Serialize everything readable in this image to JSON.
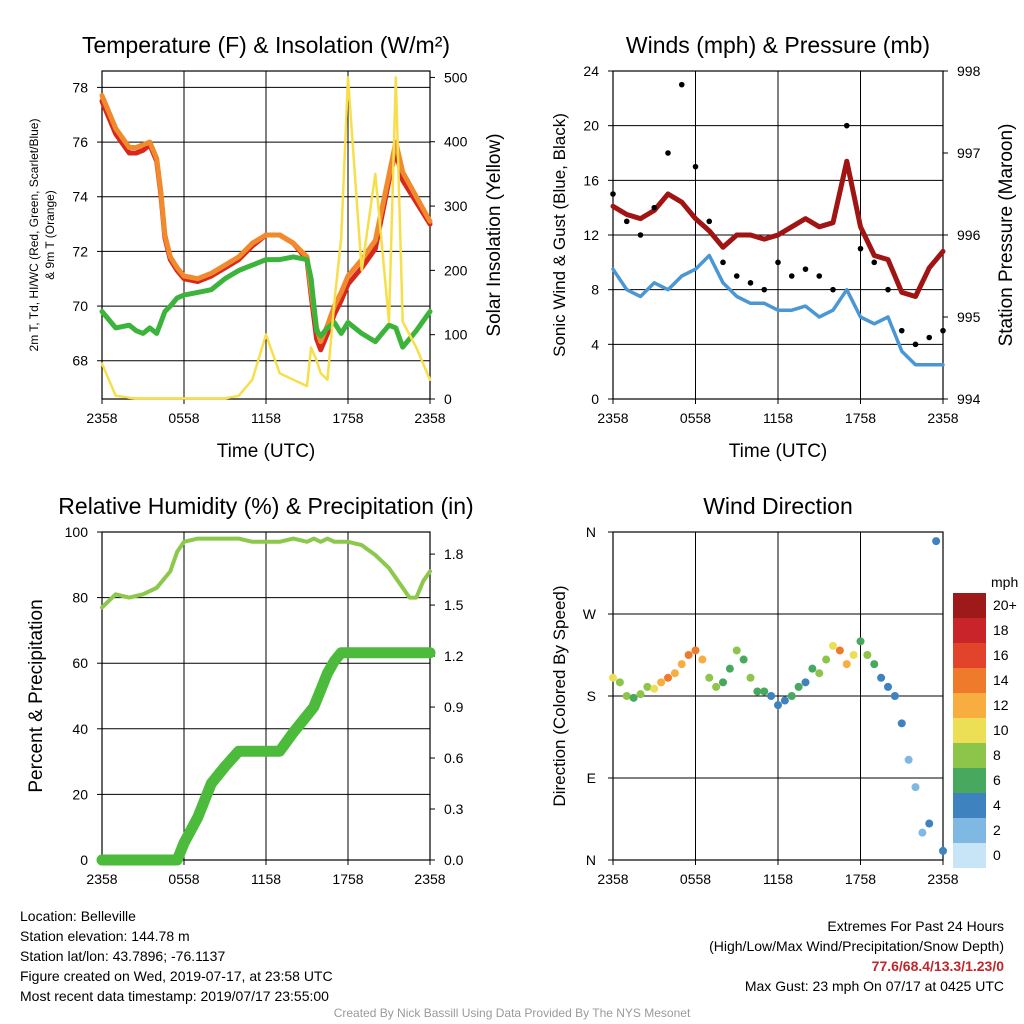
{
  "colors": {
    "red": "#d7281e",
    "orange": "#f08a2c",
    "green": "#3cb43c",
    "yellow": "#f7df4b",
    "blue": "#4a97d4",
    "black": "#000000",
    "maroon": "#a01414",
    "rh": "#8cc84b",
    "precip": "#4cbb3c"
  },
  "chart_data": [
    {
      "type": "line",
      "title": "Temperature (F) & Insolation (W/m²)",
      "xlabel": "Time (UTC)",
      "ylabel": "2m T, Tₓ, HI/WC (Red, Green, Scarlet/Blue) & 9m T (Orange)",
      "ylabel_line1": "2m T, Td, HI/WC (Red, Green, Scarlet/Blue)",
      "ylabel_line2": "& 9m T (Orange)",
      "y2label": "Solar Insolation (Yellow)",
      "x_ticks": [
        "2358",
        "0558",
        "1158",
        "1758",
        "2358"
      ],
      "ylim": [
        66.6,
        78.6
      ],
      "y_ticks": [
        68,
        70,
        72,
        74,
        76,
        78
      ],
      "y2lim": [
        0,
        510
      ],
      "y2_ticks": [
        0,
        100,
        200,
        300,
        400,
        500
      ],
      "x_hours": [
        0,
        1,
        2,
        2.5,
        3,
        3.5,
        4,
        4.3,
        4.6,
        5,
        5.5,
        6,
        7,
        8,
        9,
        10,
        11,
        12,
        13,
        14,
        15,
        15.3,
        15.7,
        16,
        16.5,
        17,
        17.5,
        18,
        19,
        20,
        21,
        21.5,
        22,
        23,
        24
      ],
      "series": [
        {
          "name": "2m T",
          "color": "red",
          "values": [
            77.5,
            76.3,
            75.6,
            75.6,
            75.7,
            75.9,
            75.3,
            74.1,
            72.5,
            71.7,
            71.3,
            71.0,
            70.9,
            71.1,
            71.4,
            71.7,
            72.2,
            72.6,
            72.6,
            72.3,
            71.7,
            70.4,
            68.8,
            68.4,
            69.0,
            69.7,
            70.2,
            70.8,
            71.4,
            72.1,
            74.6,
            75.7,
            74.6,
            73.8,
            73.0
          ]
        },
        {
          "name": "9m T",
          "color": "orange",
          "values": [
            77.7,
            76.5,
            75.8,
            75.8,
            75.9,
            76.0,
            75.4,
            74.2,
            72.6,
            71.8,
            71.4,
            71.1,
            71.0,
            71.2,
            71.5,
            71.8,
            72.3,
            72.6,
            72.6,
            72.3,
            71.8,
            70.6,
            69.2,
            68.7,
            69.3,
            70.0,
            70.5,
            71.1,
            71.7,
            72.4,
            74.8,
            76.0,
            74.9,
            74.0,
            73.1
          ]
        },
        {
          "name": "Dew point",
          "color": "green",
          "values": [
            69.8,
            69.2,
            69.3,
            69.1,
            69.0,
            69.2,
            69.0,
            69.4,
            69.8,
            70.0,
            70.3,
            70.4,
            70.5,
            70.6,
            71.0,
            71.3,
            71.5,
            71.7,
            71.7,
            71.8,
            71.7,
            71.0,
            69.1,
            68.9,
            69.2,
            69.4,
            69.0,
            69.4,
            69.0,
            68.7,
            69.3,
            69.2,
            68.5,
            69.1,
            69.8
          ]
        },
        {
          "name": "Solar Insolation",
          "color": "yellow",
          "axis": "right",
          "values": [
            55,
            5,
            2,
            1,
            1,
            1,
            1,
            1,
            1,
            1,
            1,
            1,
            1,
            1,
            1,
            5,
            30,
            100,
            40,
            30,
            20,
            80,
            60,
            40,
            30,
            150,
            250,
            500,
            200,
            350,
            120,
            500,
            120,
            80,
            30
          ]
        }
      ]
    },
    {
      "type": "line",
      "title": "Winds (mph) & Pressure (mb)",
      "xlabel": "Time (UTC)",
      "ylabel": "Sonic Wind & Gust (Blue, Black)",
      "y2label": "Station Pressure (Maroon)",
      "x_ticks": [
        "2358",
        "0558",
        "1158",
        "1758",
        "2358"
      ],
      "ylim": [
        0,
        24
      ],
      "y_ticks": [
        0,
        4,
        8,
        12,
        16,
        20,
        24
      ],
      "y2lim": [
        994,
        998
      ],
      "y2_ticks": [
        994,
        995,
        996,
        997,
        998
      ],
      "x_hours": [
        0,
        1,
        2,
        3,
        4,
        5,
        6,
        7,
        8,
        9,
        10,
        11,
        12,
        13,
        14,
        15,
        16,
        17,
        18,
        19,
        20,
        21,
        22,
        23,
        24
      ],
      "series": [
        {
          "name": "Sonic Wind",
          "color": "blue",
          "values": [
            9.5,
            8.0,
            7.5,
            8.5,
            8.0,
            9.0,
            9.5,
            10.5,
            8.5,
            7.5,
            7.0,
            7.0,
            6.5,
            6.5,
            6.8,
            6.0,
            6.5,
            8.0,
            6.0,
            5.5,
            6.0,
            3.5,
            2.5,
            2.5,
            2.5
          ]
        },
        {
          "name": "Pressure",
          "color": "maroon",
          "axis": "right",
          "values": [
            996.35,
            996.25,
            996.2,
            996.3,
            996.5,
            996.4,
            996.2,
            996.05,
            995.85,
            996.0,
            996.0,
            995.95,
            996.0,
            996.1,
            996.2,
            996.1,
            996.15,
            996.9,
            996.1,
            995.75,
            995.7,
            995.3,
            995.25,
            995.6,
            995.8
          ]
        },
        {
          "name": "Gust",
          "color": "black",
          "style": "points",
          "values": [
            15,
            13,
            12,
            14,
            18,
            23,
            17,
            13,
            10,
            9,
            8.5,
            8,
            10,
            9,
            9.5,
            9,
            8,
            20,
            11,
            10,
            8,
            5,
            4,
            4.5,
            5
          ]
        }
      ]
    },
    {
      "type": "line",
      "title": "Relative Humidity (%) & Precipitation (in)",
      "ylabel": "Percent & Precipitation",
      "x_ticks": [
        "2358",
        "0558",
        "1158",
        "1758",
        "2358"
      ],
      "ylim": [
        0,
        100
      ],
      "y_ticks": [
        0,
        20,
        40,
        60,
        80,
        100
      ],
      "y2lim": [
        0,
        1.93
      ],
      "y2_ticks": [
        "0.0",
        "0.3",
        "0.6",
        "0.9",
        "1.2",
        "1.5",
        "1.8"
      ],
      "x_hours": [
        0,
        0.5,
        1,
        2,
        3,
        4,
        5,
        5.5,
        6,
        7,
        8,
        9,
        10,
        11,
        12,
        13,
        14,
        15,
        15.5,
        16,
        16.5,
        17,
        17.5,
        18,
        19,
        20,
        21,
        22,
        22.5,
        23,
        23.5,
        24
      ],
      "series": [
        {
          "name": "Relative Humidity",
          "color": "rh",
          "values": [
            77,
            79,
            81,
            80,
            81,
            83,
            88,
            94,
            97,
            98,
            98,
            98,
            98,
            97,
            97,
            97,
            98,
            97,
            98,
            97,
            98,
            97,
            97,
            97,
            96,
            93,
            89,
            83,
            80,
            80,
            85,
            88
          ]
        },
        {
          "name": "Precipitation",
          "color": "precip",
          "axis": "right",
          "values": [
            0,
            0,
            0,
            0,
            0,
            0,
            0,
            0,
            0.1,
            0.25,
            0.45,
            0.55,
            0.64,
            0.64,
            0.64,
            0.64,
            0.75,
            0.85,
            0.9,
            1.0,
            1.1,
            1.17,
            1.22,
            1.22,
            1.22,
            1.22,
            1.22,
            1.22,
            1.22,
            1.22,
            1.22,
            1.22
          ]
        }
      ]
    },
    {
      "type": "scatter",
      "title": "Wind Direction",
      "ylabel": "Direction (Colored By Speed)",
      "x_ticks": [
        "2358",
        "0558",
        "1158",
        "1758",
        "2358"
      ],
      "y_ticks": [
        "N",
        "E",
        "S",
        "W",
        "N"
      ],
      "ylim": [
        0,
        360
      ],
      "colorbar_title": "mph",
      "colorbar_labels": [
        "20+",
        "18",
        "16",
        "14",
        "12",
        "10",
        "8",
        "6",
        "4",
        "2",
        "0"
      ],
      "colorbar_colors": [
        "#9e1a1a",
        "#c9242a",
        "#e2432b",
        "#f07a2b",
        "#f7ad3f",
        "#ecde55",
        "#8dc54a",
        "#48a85e",
        "#3f82c0",
        "#7fb9e3",
        "#c7e5f6"
      ],
      "x_hours": [
        0,
        0.5,
        1,
        1.5,
        2,
        2.5,
        3,
        3.5,
        4,
        4.5,
        5,
        5.5,
        6,
        6.5,
        7,
        7.5,
        8,
        8.5,
        9,
        9.5,
        10,
        10.5,
        11,
        11.5,
        12,
        12.5,
        13,
        13.5,
        14,
        14.5,
        15,
        15.5,
        16,
        16.5,
        17,
        17.5,
        18,
        18.5,
        19,
        19.5,
        20,
        20.5,
        21,
        21.5,
        22,
        22.5,
        23,
        23.5,
        24
      ],
      "values": [
        200,
        195,
        180,
        178,
        182,
        190,
        188,
        195,
        200,
        205,
        215,
        225,
        230,
        220,
        200,
        190,
        195,
        210,
        230,
        220,
        200,
        185,
        185,
        180,
        170,
        175,
        180,
        190,
        195,
        210,
        205,
        220,
        235,
        230,
        215,
        225,
        240,
        225,
        215,
        200,
        190,
        180,
        150,
        110,
        80,
        30,
        40,
        350,
        10
      ],
      "speeds": [
        10,
        8,
        7,
        6,
        7,
        8,
        9,
        11,
        13,
        12,
        11,
        13,
        14,
        12,
        8,
        7,
        6,
        6,
        8,
        5,
        7,
        6,
        5,
        4,
        3,
        4,
        5,
        6,
        4,
        5,
        7,
        8,
        9,
        14,
        12,
        9,
        6,
        7,
        6,
        4,
        3,
        4,
        3,
        2,
        1,
        2,
        3,
        4,
        3
      ]
    }
  ],
  "footer": {
    "location": "Location: Belleville",
    "elevation": "Station elevation: 144.78 m",
    "latlon": "Station lat/lon: 43.7896; -76.1137",
    "created": "Figure created on Wed, 2019-07-17, at 23:58 UTC",
    "recent": "Most recent data timestamp: 2019/07/17 23:55:00",
    "extremes_title": "Extremes For Past 24 Hours",
    "extremes_legend": "(High/Low/Max Wind/Precipitation/Snow Depth)",
    "extremes_values": "77.6/68.4/13.3/1.23/0",
    "max_gust": "Max Gust: 23 mph On 07/17 at 0425 UTC",
    "credit": "Created By Nick Bassill Using Data Provided By The NYS Mesonet"
  }
}
